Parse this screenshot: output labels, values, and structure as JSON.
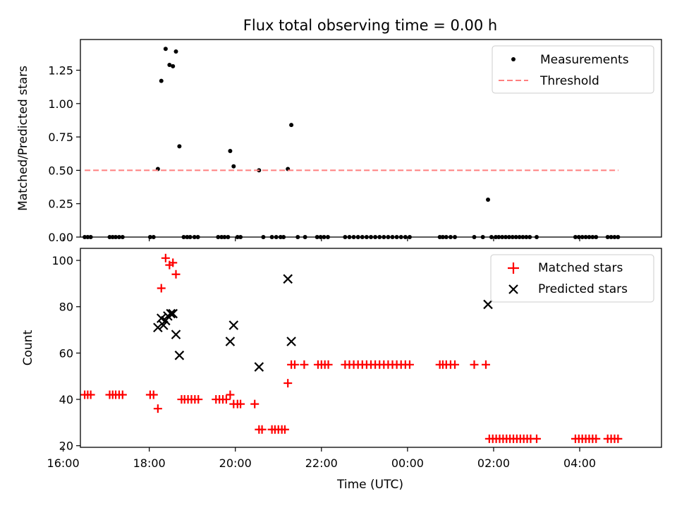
{
  "chart_data": [
    {
      "type": "scatter",
      "title": "Flux total observing time = 0.00 h",
      "xlabel": "",
      "ylabel": "Matched/Predicted stars",
      "xlim": [
        16.4,
        29.9
      ],
      "ylim": [
        0,
        1.48
      ],
      "yticks": [
        {
          "v": 0.0,
          "label": "0.00"
        },
        {
          "v": 0.25,
          "label": "0.25"
        },
        {
          "v": 0.5,
          "label": "0.50"
        },
        {
          "v": 0.75,
          "label": "0.75"
        },
        {
          "v": 1.0,
          "label": "1.00"
        },
        {
          "v": 1.25,
          "label": "1.25"
        }
      ],
      "legend_position": "top-right",
      "legend": [
        "Measurements",
        "Threshold"
      ],
      "series": [
        {
          "name": "Measurements",
          "color": "#000000",
          "marker": "dot",
          "points": [
            [
              16.5,
              0
            ],
            [
              16.57,
              0
            ],
            [
              16.64,
              0
            ],
            [
              17.08,
              0
            ],
            [
              17.15,
              0
            ],
            [
              17.22,
              0
            ],
            [
              17.3,
              0
            ],
            [
              17.38,
              0
            ],
            [
              18.02,
              0
            ],
            [
              18.1,
              0
            ],
            [
              18.2,
              0.51
            ],
            [
              18.28,
              1.17
            ],
            [
              18.38,
              1.41
            ],
            [
              18.47,
              1.29
            ],
            [
              18.55,
              1.28
            ],
            [
              18.62,
              1.39
            ],
            [
              18.7,
              0.68
            ],
            [
              18.8,
              0
            ],
            [
              18.88,
              0
            ],
            [
              18.95,
              0
            ],
            [
              19.05,
              0
            ],
            [
              19.13,
              0
            ],
            [
              19.6,
              0
            ],
            [
              19.68,
              0
            ],
            [
              19.75,
              0
            ],
            [
              19.83,
              0
            ],
            [
              19.88,
              0.645
            ],
            [
              19.96,
              0.53
            ],
            [
              20.05,
              0
            ],
            [
              20.12,
              0
            ],
            [
              20.55,
              0.5
            ],
            [
              20.65,
              0
            ],
            [
              20.85,
              0
            ],
            [
              20.95,
              0
            ],
            [
              21.05,
              0
            ],
            [
              21.12,
              0
            ],
            [
              21.22,
              0.51
            ],
            [
              21.3,
              0.84
            ],
            [
              21.45,
              0
            ],
            [
              21.62,
              0
            ],
            [
              21.9,
              0
            ],
            [
              21.98,
              0
            ],
            [
              22.06,
              0
            ],
            [
              22.15,
              0
            ],
            [
              22.55,
              0
            ],
            [
              22.65,
              0
            ],
            [
              22.75,
              0
            ],
            [
              22.85,
              0
            ],
            [
              22.95,
              0
            ],
            [
              23.05,
              0
            ],
            [
              23.15,
              0
            ],
            [
              23.25,
              0
            ],
            [
              23.35,
              0
            ],
            [
              23.45,
              0
            ],
            [
              23.55,
              0
            ],
            [
              23.65,
              0
            ],
            [
              23.75,
              0
            ],
            [
              23.85,
              0
            ],
            [
              23.95,
              0
            ],
            [
              24.05,
              0
            ],
            [
              24.75,
              0
            ],
            [
              24.82,
              0
            ],
            [
              24.9,
              0
            ],
            [
              25.0,
              0
            ],
            [
              25.1,
              0
            ],
            [
              25.55,
              0
            ],
            [
              25.75,
              0
            ],
            [
              25.87,
              0.28
            ],
            [
              25.95,
              0
            ],
            [
              26.05,
              0
            ],
            [
              26.12,
              0
            ],
            [
              26.2,
              0
            ],
            [
              26.28,
              0
            ],
            [
              26.36,
              0
            ],
            [
              26.44,
              0
            ],
            [
              26.52,
              0
            ],
            [
              26.6,
              0
            ],
            [
              26.68,
              0
            ],
            [
              26.76,
              0
            ],
            [
              26.84,
              0
            ],
            [
              27.0,
              0
            ],
            [
              27.9,
              0
            ],
            [
              27.98,
              0
            ],
            [
              28.06,
              0
            ],
            [
              28.14,
              0
            ],
            [
              28.22,
              0
            ],
            [
              28.3,
              0
            ],
            [
              28.38,
              0
            ],
            [
              28.65,
              0
            ],
            [
              28.73,
              0
            ],
            [
              28.81,
              0
            ],
            [
              28.89,
              0
            ]
          ]
        },
        {
          "name": "Threshold",
          "color": "#ff7f7f",
          "style": "dashed",
          "points": [
            [
              16.5,
              0.5
            ],
            [
              28.9,
              0.5
            ]
          ]
        }
      ]
    },
    {
      "type": "scatter",
      "title": "",
      "xlabel": "Time (UTC)",
      "ylabel": "Count",
      "xlim": [
        16.4,
        29.9
      ],
      "ylim": [
        19.3,
        105.2
      ],
      "xticks": [
        {
          "v": 16,
          "label": "16:00"
        },
        {
          "v": 18,
          "label": "18:00"
        },
        {
          "v": 20,
          "label": "20:00"
        },
        {
          "v": 22,
          "label": "22:00"
        },
        {
          "v": 24,
          "label": "00:00"
        },
        {
          "v": 26,
          "label": "02:00"
        },
        {
          "v": 28,
          "label": "04:00"
        }
      ],
      "yticks": [
        {
          "v": 20,
          "label": "20"
        },
        {
          "v": 40,
          "label": "40"
        },
        {
          "v": 60,
          "label": "60"
        },
        {
          "v": 80,
          "label": "80"
        },
        {
          "v": 100,
          "label": "100"
        }
      ],
      "legend_position": "top-right",
      "legend": [
        "Matched stars",
        "Predicted stars"
      ],
      "series": [
        {
          "name": "Matched stars",
          "color": "#ff0000",
          "marker": "plus",
          "points": [
            [
              16.5,
              42
            ],
            [
              16.57,
              42
            ],
            [
              16.64,
              42
            ],
            [
              17.08,
              42
            ],
            [
              17.15,
              42
            ],
            [
              17.22,
              42
            ],
            [
              17.3,
              42
            ],
            [
              17.38,
              42
            ],
            [
              18.02,
              42
            ],
            [
              18.1,
              42
            ],
            [
              18.2,
              36
            ],
            [
              18.28,
              88
            ],
            [
              18.38,
              101
            ],
            [
              18.47,
              98
            ],
            [
              18.55,
              99
            ],
            [
              18.62,
              94
            ],
            [
              18.75,
              40
            ],
            [
              18.82,
              40
            ],
            [
              18.9,
              40
            ],
            [
              18.98,
              40
            ],
            [
              19.06,
              40
            ],
            [
              19.14,
              40
            ],
            [
              19.55,
              40
            ],
            [
              19.63,
              40
            ],
            [
              19.71,
              40
            ],
            [
              19.79,
              40
            ],
            [
              19.88,
              42
            ],
            [
              19.96,
              38
            ],
            [
              20.05,
              38
            ],
            [
              20.12,
              38
            ],
            [
              20.45,
              38
            ],
            [
              20.55,
              27
            ],
            [
              20.62,
              27
            ],
            [
              20.85,
              27
            ],
            [
              20.92,
              27
            ],
            [
              21.0,
              27
            ],
            [
              21.08,
              27
            ],
            [
              21.15,
              27
            ],
            [
              21.22,
              47
            ],
            [
              21.3,
              55
            ],
            [
              21.38,
              55
            ],
            [
              21.6,
              55
            ],
            [
              21.92,
              55
            ],
            [
              22.0,
              55
            ],
            [
              22.08,
              55
            ],
            [
              22.16,
              55
            ],
            [
              22.55,
              55
            ],
            [
              22.65,
              55
            ],
            [
              22.75,
              55
            ],
            [
              22.85,
              55
            ],
            [
              22.95,
              55
            ],
            [
              23.05,
              55
            ],
            [
              23.15,
              55
            ],
            [
              23.25,
              55
            ],
            [
              23.35,
              55
            ],
            [
              23.45,
              55
            ],
            [
              23.55,
              55
            ],
            [
              23.65,
              55
            ],
            [
              23.75,
              55
            ],
            [
              23.85,
              55
            ],
            [
              23.95,
              55
            ],
            [
              24.05,
              55
            ],
            [
              24.75,
              55
            ],
            [
              24.82,
              55
            ],
            [
              24.9,
              55
            ],
            [
              25.0,
              55
            ],
            [
              25.1,
              55
            ],
            [
              25.55,
              55
            ],
            [
              25.82,
              55
            ],
            [
              25.9,
              23
            ],
            [
              25.98,
              23
            ],
            [
              26.06,
              23
            ],
            [
              26.14,
              23
            ],
            [
              26.22,
              23
            ],
            [
              26.3,
              23
            ],
            [
              26.38,
              23
            ],
            [
              26.46,
              23
            ],
            [
              26.54,
              23
            ],
            [
              26.62,
              23
            ],
            [
              26.7,
              23
            ],
            [
              26.78,
              23
            ],
            [
              26.86,
              23
            ],
            [
              27.0,
              23
            ],
            [
              27.9,
              23
            ],
            [
              27.98,
              23
            ],
            [
              28.06,
              23
            ],
            [
              28.14,
              23
            ],
            [
              28.22,
              23
            ],
            [
              28.3,
              23
            ],
            [
              28.38,
              23
            ],
            [
              28.65,
              23
            ],
            [
              28.73,
              23
            ],
            [
              28.81,
              23
            ],
            [
              28.89,
              23
            ]
          ]
        },
        {
          "name": "Predicted stars",
          "color": "#000000",
          "marker": "x",
          "points": [
            [
              18.2,
              71
            ],
            [
              18.28,
              75
            ],
            [
              18.33,
              72
            ],
            [
              18.38,
              74
            ],
            [
              18.43,
              76
            ],
            [
              18.5,
              77
            ],
            [
              18.55,
              77
            ],
            [
              18.62,
              68
            ],
            [
              18.7,
              59
            ],
            [
              19.88,
              65
            ],
            [
              19.96,
              72
            ],
            [
              20.55,
              54
            ],
            [
              21.22,
              92
            ],
            [
              21.3,
              65
            ],
            [
              25.87,
              81
            ]
          ]
        }
      ]
    }
  ]
}
